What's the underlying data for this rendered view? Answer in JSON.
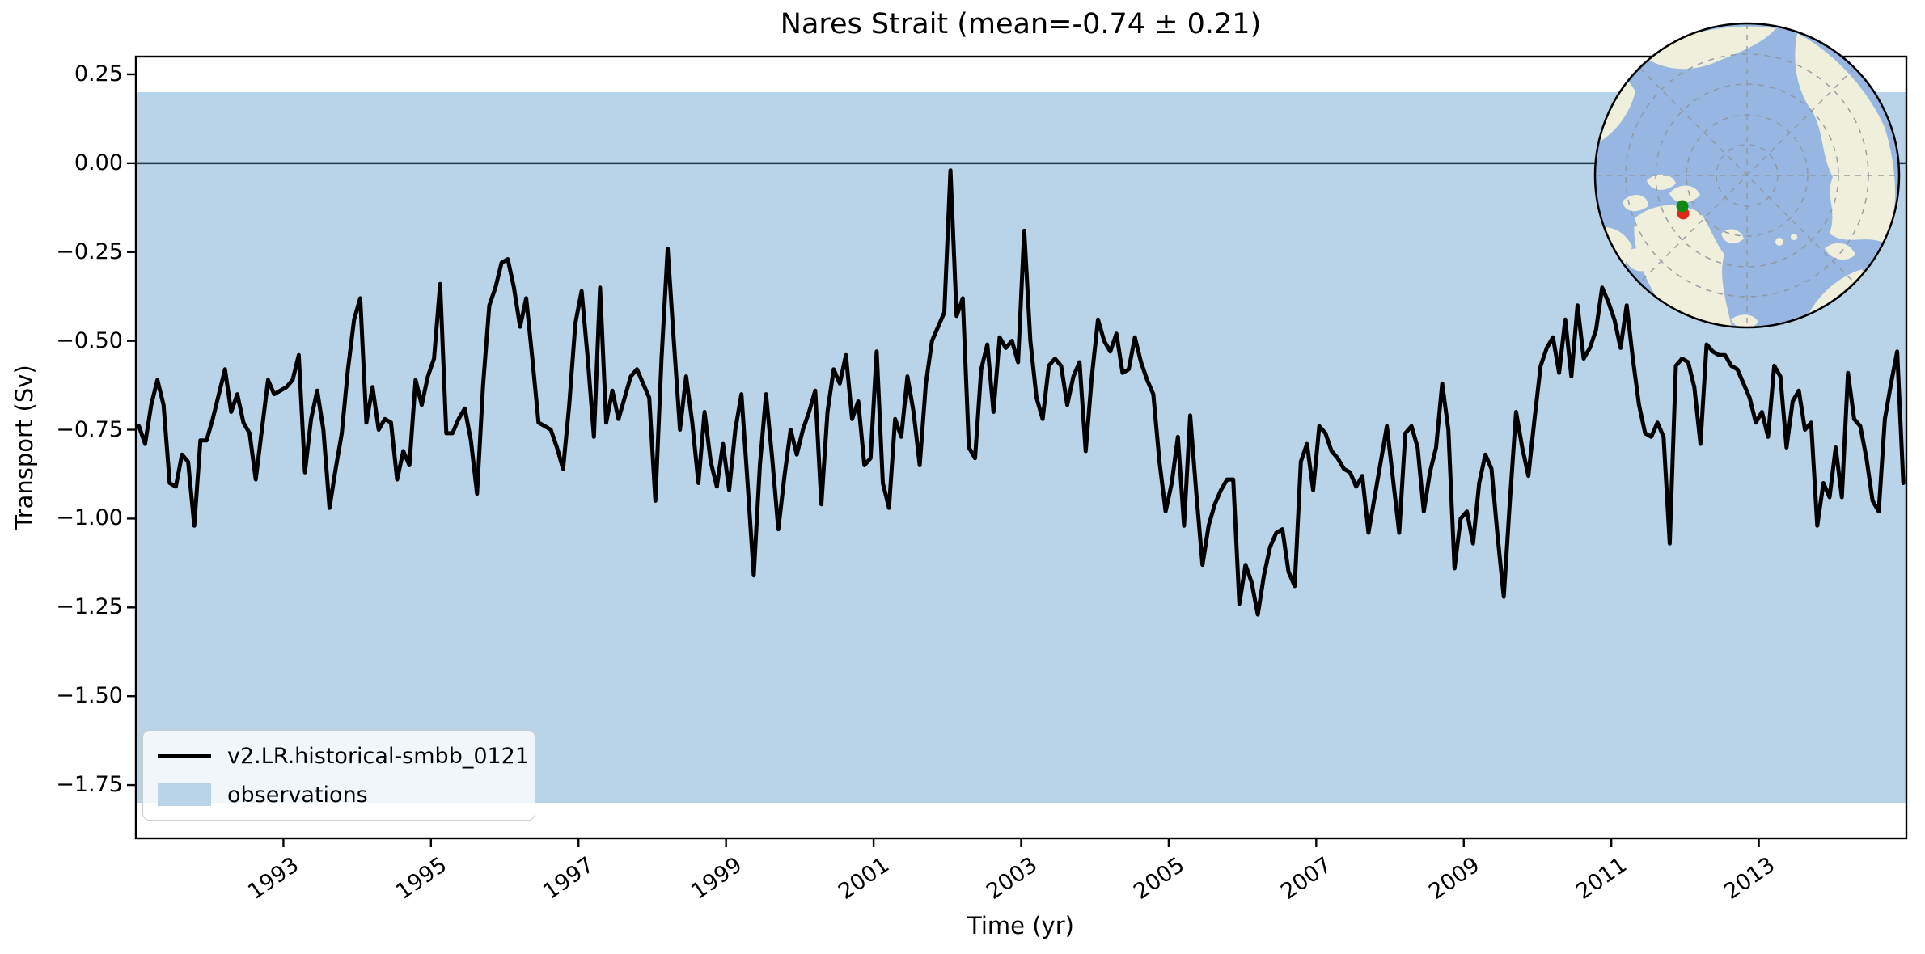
{
  "title": "Nares Strait (mean=-0.74 ± 0.21)",
  "axes": {
    "xlabel": "Time (yr)",
    "ylabel": "Transport (Sv)"
  },
  "legend": {
    "series_label": "v2.LR.historical-smbb_0121",
    "band_label": "observations"
  },
  "colors": {
    "series": "#000000",
    "band": "#b9d3e8",
    "zero_line": "#1c3a52",
    "spine": "#000000",
    "background": "#ffffff"
  },
  "inset_map": {
    "projection": "north-polar-stereographic",
    "ocean_color": "#97b6e1",
    "land_color": "#efefdb",
    "graticule_color": "#8f969c",
    "border_color": "#000000",
    "markers": [
      {
        "name": "marker-green",
        "color": "#0f8a10"
      },
      {
        "name": "marker-red",
        "color": "#e02818"
      }
    ]
  },
  "chart_data": {
    "type": "line",
    "title": "Nares Strait (mean=-0.74 ± 0.21)",
    "xlabel": "Time (yr)",
    "ylabel": "Transport (Sv)",
    "xlim": [
      1991,
      2015
    ],
    "ylim": [
      -1.9,
      0.3
    ],
    "xticks": [
      1993,
      1995,
      1997,
      1999,
      2001,
      2003,
      2005,
      2007,
      2009,
      2011,
      2013
    ],
    "yticks": [
      0.25,
      0.0,
      -0.25,
      -0.5,
      -0.75,
      -1.0,
      -1.25,
      -1.5,
      -1.75
    ],
    "grid": false,
    "legend_position": "lower left",
    "zero_line": 0,
    "mean": -0.74,
    "std": 0.21,
    "observations_band": {
      "label": "observations",
      "range": [
        -1.8,
        0.2
      ],
      "color": "#b9d3e8"
    },
    "series": [
      {
        "name": "v2.LR.historical-smbb_0121",
        "color": "#000000",
        "start_year": 1991,
        "frequency": "monthly",
        "values": [
          -0.74,
          -0.79,
          -0.68,
          -0.61,
          -0.68,
          -0.9,
          -0.91,
          -0.82,
          -0.84,
          -1.02,
          -0.78,
          -0.78,
          -0.72,
          -0.65,
          -0.58,
          -0.7,
          -0.65,
          -0.73,
          -0.76,
          -0.89,
          -0.75,
          -0.61,
          -0.65,
          -0.64,
          -0.63,
          -0.61,
          -0.54,
          -0.87,
          -0.72,
          -0.64,
          -0.75,
          -0.97,
          -0.86,
          -0.76,
          -0.58,
          -0.44,
          -0.38,
          -0.73,
          -0.63,
          -0.75,
          -0.72,
          -0.73,
          -0.89,
          -0.81,
          -0.85,
          -0.61,
          -0.68,
          -0.6,
          -0.55,
          -0.34,
          -0.76,
          -0.76,
          -0.72,
          -0.69,
          -0.78,
          -0.93,
          -0.62,
          -0.4,
          -0.35,
          -0.28,
          -0.27,
          -0.35,
          -0.46,
          -0.38,
          -0.55,
          -0.73,
          -0.74,
          -0.75,
          -0.8,
          -0.86,
          -0.68,
          -0.45,
          -0.36,
          -0.55,
          -0.77,
          -0.35,
          -0.73,
          -0.64,
          -0.72,
          -0.66,
          -0.6,
          -0.58,
          -0.62,
          -0.66,
          -0.95,
          -0.55,
          -0.24,
          -0.5,
          -0.75,
          -0.6,
          -0.73,
          -0.9,
          -0.7,
          -0.84,
          -0.91,
          -0.79,
          -0.92,
          -0.75,
          -0.65,
          -0.9,
          -1.16,
          -0.85,
          -0.65,
          -0.83,
          -1.03,
          -0.88,
          -0.75,
          -0.82,
          -0.75,
          -0.7,
          -0.64,
          -0.96,
          -0.7,
          -0.58,
          -0.62,
          -0.54,
          -0.72,
          -0.67,
          -0.85,
          -0.83,
          -0.53,
          -0.9,
          -0.97,
          -0.72,
          -0.77,
          -0.6,
          -0.7,
          -0.85,
          -0.62,
          -0.5,
          -0.46,
          -0.42,
          -0.02,
          -0.43,
          -0.38,
          -0.8,
          -0.83,
          -0.58,
          -0.51,
          -0.7,
          -0.49,
          -0.52,
          -0.5,
          -0.56,
          -0.19,
          -0.5,
          -0.66,
          -0.72,
          -0.57,
          -0.55,
          -0.57,
          -0.68,
          -0.6,
          -0.56,
          -0.81,
          -0.6,
          -0.44,
          -0.5,
          -0.53,
          -0.48,
          -0.59,
          -0.58,
          -0.49,
          -0.56,
          -0.61,
          -0.65,
          -0.84,
          -0.98,
          -0.9,
          -0.77,
          -1.02,
          -0.71,
          -0.93,
          -1.13,
          -1.02,
          -0.96,
          -0.92,
          -0.89,
          -0.89,
          -1.24,
          -1.13,
          -1.18,
          -1.27,
          -1.16,
          -1.08,
          -1.04,
          -1.03,
          -1.15,
          -1.19,
          -0.84,
          -0.79,
          -0.92,
          -0.74,
          -0.76,
          -0.81,
          -0.83,
          -0.86,
          -0.87,
          -0.91,
          -0.88,
          -1.04,
          -0.94,
          -0.84,
          -0.74,
          -0.89,
          -1.04,
          -0.76,
          -0.74,
          -0.8,
          -0.98,
          -0.87,
          -0.8,
          -0.62,
          -0.75,
          -1.14,
          -1.0,
          -0.98,
          -1.07,
          -0.9,
          -0.82,
          -0.86,
          -1.05,
          -1.22,
          -0.95,
          -0.7,
          -0.8,
          -0.88,
          -0.72,
          -0.57,
          -0.52,
          -0.49,
          -0.59,
          -0.44,
          -0.6,
          -0.4,
          -0.55,
          -0.52,
          -0.47,
          -0.35,
          -0.39,
          -0.44,
          -0.52,
          -0.4,
          -0.55,
          -0.68,
          -0.76,
          -0.77,
          -0.73,
          -0.77,
          -1.07,
          -0.57,
          -0.55,
          -0.56,
          -0.63,
          -0.79,
          -0.51,
          -0.53,
          -0.54,
          -0.54,
          -0.57,
          -0.58,
          -0.62,
          -0.66,
          -0.73,
          -0.7,
          -0.77,
          -0.57,
          -0.6,
          -0.8,
          -0.67,
          -0.64,
          -0.75,
          -0.73,
          -1.02,
          -0.9,
          -0.94,
          -0.8,
          -0.94,
          -0.59,
          -0.72,
          -0.74,
          -0.83,
          -0.95,
          -0.98,
          -0.72,
          -0.62,
          -0.53,
          -0.9
        ]
      }
    ]
  }
}
